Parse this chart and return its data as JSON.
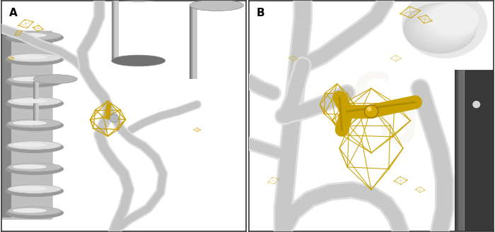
{
  "figure_width": 7.0,
  "figure_height": 3.29,
  "dpi": 100,
  "panel_A_label": "A",
  "panel_B_label": "B",
  "label_fontsize": 11,
  "label_fontweight": "bold",
  "label_color": "#000000",
  "background_color": "#ffffff",
  "border_color": "#333333",
  "border_linewidth": 1.2,
  "gold_color": "#c8a000",
  "gold_mesh_color": "#c8a000",
  "gold_dark": "#8b6914",
  "tube_light": "#e8e8e8",
  "tube_mid": "#c8c8c8",
  "tube_dark": "#a8a8a8",
  "helix_light": "#d8d8d8",
  "helix_dark": "#686868",
  "bg_white": "#ffffff",
  "dark_region": "#404040",
  "watermark_color": "#d8d0b8"
}
